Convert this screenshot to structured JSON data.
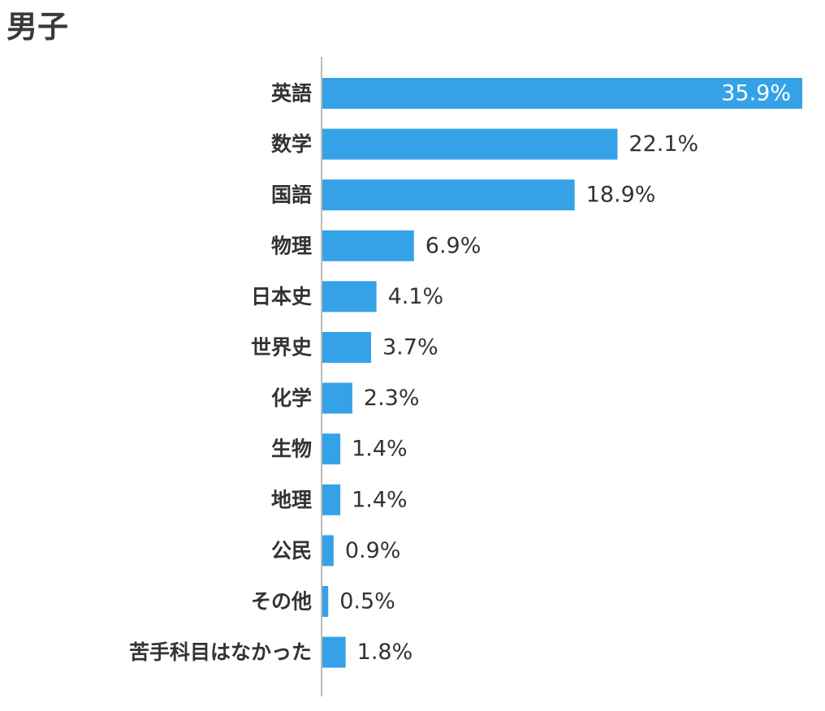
{
  "chart_data": {
    "type": "bar",
    "orientation": "horizontal",
    "title": "男子",
    "categories": [
      "英語",
      "数学",
      "国語",
      "物理",
      "日本史",
      "世界史",
      "化学",
      "生物",
      "地理",
      "公民",
      "その他",
      "苦手科目はなかった"
    ],
    "values": [
      35.9,
      22.1,
      18.9,
      6.9,
      4.1,
      3.7,
      2.3,
      1.4,
      1.4,
      0.9,
      0.5,
      1.8
    ],
    "value_labels": [
      "35.9%",
      "22.1%",
      "18.9%",
      "6.9%",
      "4.1%",
      "3.7%",
      "2.3%",
      "1.4%",
      "1.4%",
      "0.9%",
      "0.5%",
      "1.8%"
    ],
    "xlim": [
      0,
      35.9
    ],
    "unit": "%",
    "bar_color": "#35a2e8",
    "axis_color": "#bbbbbb",
    "grid": false,
    "legend": "none"
  }
}
